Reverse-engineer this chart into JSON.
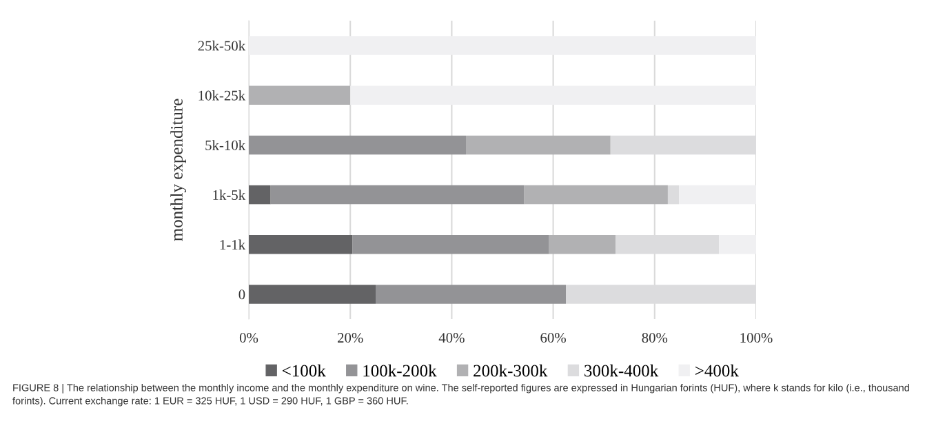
{
  "chart_data": {
    "type": "bar",
    "orientation": "horizontal",
    "stacked": true,
    "ylabel": "monthly expenditure",
    "categories": [
      "25k-50k",
      "10k-25k",
      "5k-10k",
      "1k-5k",
      "1-1k",
      "0"
    ],
    "series": [
      {
        "name": "<100k",
        "color": "#636365",
        "values": [
          0,
          0,
          0,
          4.3,
          20.4,
          25
        ]
      },
      {
        "name": "100k-200k",
        "color": "#939396",
        "values": [
          0,
          0,
          42.8,
          50,
          38.8,
          37.5
        ]
      },
      {
        "name": "200k-300k",
        "color": "#b1b1b3",
        "values": [
          0,
          20,
          28.5,
          28.3,
          13.1,
          0
        ]
      },
      {
        "name": "300k-400k",
        "color": "#dcdcde",
        "values": [
          0,
          0,
          28.7,
          2.2,
          20.4,
          37.5
        ]
      },
      {
        "name": ">400k",
        "color": "#f0f0f2",
        "values": [
          100,
          80,
          0,
          15.2,
          7.3,
          0
        ]
      }
    ],
    "xlim": [
      0,
      100
    ],
    "xticks": [
      {
        "value": 0,
        "label": "0%"
      },
      {
        "value": 20,
        "label": "20%"
      },
      {
        "value": 40,
        "label": "40%"
      },
      {
        "value": 60,
        "label": "60%"
      },
      {
        "value": 80,
        "label": "80%"
      },
      {
        "value": 100,
        "label": "100%"
      }
    ],
    "grid": "x",
    "legend": "bottom",
    "annotations": [
      "FIGURE 8 | The relationship between the monthly income and the monthly expenditure on wine. The self-reported figures are expressed in Hungarian forints (HUF), where k stands for kilo (i.e., thousand forints). Current exchange rate: 1 EUR = 325 HUF, 1 USD = 290 HUF, 1 GBP = 360 HUF."
    ]
  }
}
